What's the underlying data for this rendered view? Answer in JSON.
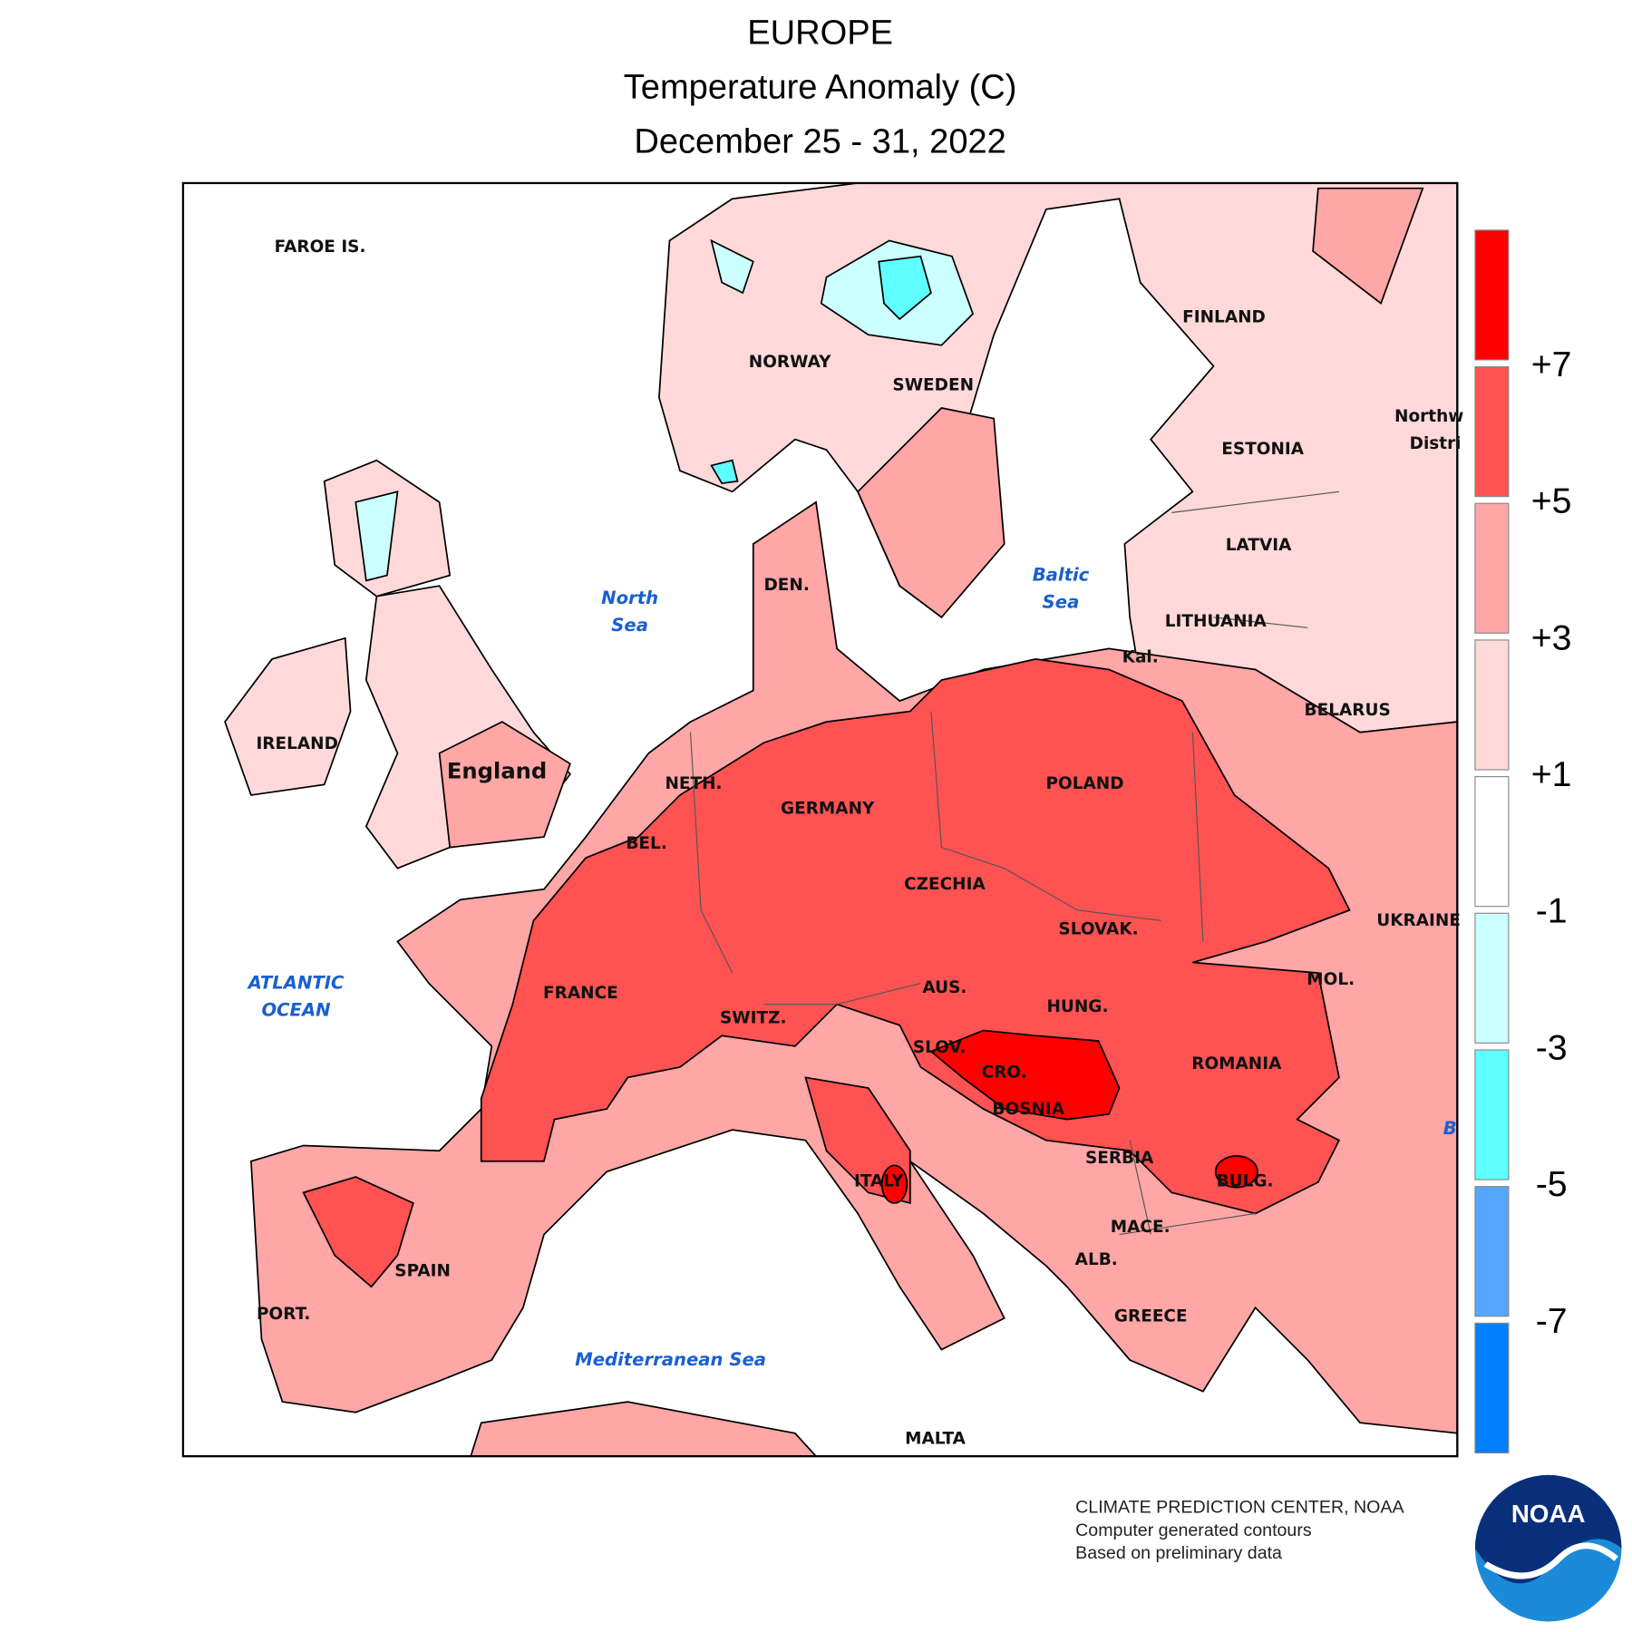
{
  "header": {
    "region": "EUROPE",
    "title": "Temperature Anomaly (C)",
    "period": "December 25 - 31, 2022"
  },
  "map": {
    "countries": [
      "FAROE IS.",
      "NORWAY",
      "SWEDEN",
      "FINLAND",
      "ESTONIA",
      "LATVIA",
      "LITHUANIA",
      "Kal.",
      "BELARUS",
      "Northw",
      "Distri",
      "UKRAINE",
      "MOL.",
      "ROMANIA",
      "BULG.",
      "SERBIA",
      "MACE.",
      "ALB.",
      "GREECE",
      "BOSNIA",
      "CRO.",
      "SLOV.",
      "HUNG.",
      "SLOVAK.",
      "AUS.",
      "CZECHIA",
      "POLAND",
      "GERMANY",
      "NETH.",
      "BEL.",
      "DEN.",
      "England",
      "IRELAND",
      "FRANCE",
      "SWITZ.",
      "ITALY",
      "SPAIN",
      "PORT.",
      "MALTA"
    ],
    "seas": [
      "North",
      "Sea",
      "Baltic",
      "Sea",
      "ATLANTIC",
      "OCEAN",
      "Mediterranean Sea",
      "B"
    ]
  },
  "legend": {
    "colors": [
      "#ff0000",
      "#ff5252",
      "#ffa6a6",
      "#ffd9d9",
      "#ffffff",
      "#ccffff",
      "#5effff",
      "#55a6ff",
      "#0080ff"
    ],
    "labels": [
      "+7",
      "+5",
      "+3",
      "+1",
      "-1",
      "-3",
      "-5",
      "-7"
    ]
  },
  "footer": {
    "lines": [
      "CLIMATE PREDICTION CENTER, NOAA",
      "Computer generated contours",
      "Based on preliminary data"
    ],
    "logo": "NOAA"
  }
}
